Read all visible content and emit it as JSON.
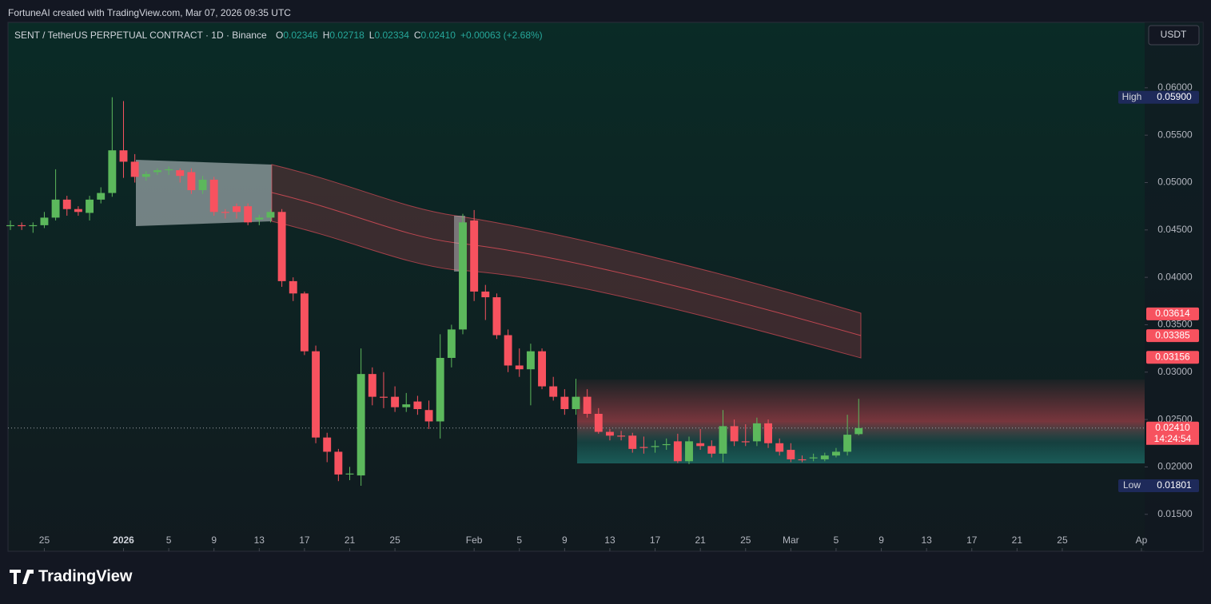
{
  "header": "FortuneAI created with TradingView.com, Mar 07, 2026 09:35 UTC",
  "brand": "TradingView",
  "currency": "USDT",
  "chart_data": {
    "type": "candlestick",
    "legend": {
      "symbol": "SENT / TetherUS PERPETUAL CONTRACT · 1D · Binance",
      "items": [
        {
          "label": "O",
          "value": "0.02346"
        },
        {
          "label": "H",
          "value": "0.02718"
        },
        {
          "label": "L",
          "value": "0.02334"
        },
        {
          "label": "C",
          "value": "0.02410"
        }
      ],
      "change": "+0.00063 (+2.68%)"
    },
    "up_color": "#5cb85c",
    "down_color": "#f7525f",
    "x": [
      "2025-12-22",
      "2025-12-23",
      "2025-12-24",
      "2025-12-25",
      "2025-12-26",
      "2025-12-27",
      "2025-12-28",
      "2025-12-29",
      "2025-12-30",
      "2025-12-31",
      "2026-01-01",
      "2026-01-02",
      "2026-01-03",
      "2026-01-04",
      "2026-01-05",
      "2026-01-06",
      "2026-01-07",
      "2026-01-08",
      "2026-01-09",
      "2026-01-10",
      "2026-01-11",
      "2026-01-12",
      "2026-01-13",
      "2026-01-14",
      "2026-01-15",
      "2026-01-16",
      "2026-01-17",
      "2026-01-18",
      "2026-01-19",
      "2026-01-20",
      "2026-01-21",
      "2026-01-22",
      "2026-01-23",
      "2026-01-24",
      "2026-01-25",
      "2026-01-26",
      "2026-01-27",
      "2026-01-28",
      "2026-01-29",
      "2026-01-30",
      "2026-01-31",
      "2026-02-01",
      "2026-02-02",
      "2026-02-03",
      "2026-02-04",
      "2026-02-05",
      "2026-02-06",
      "2026-02-07",
      "2026-02-08",
      "2026-02-09",
      "2026-02-10",
      "2026-02-11",
      "2026-02-12",
      "2026-02-13",
      "2026-02-14",
      "2026-02-15",
      "2026-02-16",
      "2026-02-17",
      "2026-02-18",
      "2026-02-19",
      "2026-02-20",
      "2026-02-21",
      "2026-02-22",
      "2026-02-23",
      "2026-02-24",
      "2026-02-25",
      "2026-02-26",
      "2026-02-27",
      "2026-02-28",
      "2026-03-01",
      "2026-03-02",
      "2026-03-03",
      "2026-03-04",
      "2026-03-05",
      "2026-03-06",
      "2026-03-07"
    ],
    "open": [
      0.0454,
      0.0455,
      0.0454,
      0.0455,
      0.0463,
      0.0482,
      0.0472,
      0.0468,
      0.0482,
      0.0489,
      0.0534,
      0.0522,
      0.0506,
      0.0511,
      0.0513,
      0.0513,
      0.0511,
      0.0492,
      0.0503,
      0.0469,
      0.0475,
      0.0475,
      0.0461,
      0.0463,
      0.0469,
      0.0396,
      0.0383,
      0.0322,
      0.0231,
      0.0216,
      0.0192,
      0.0191,
      0.0298,
      0.0274,
      0.0274,
      0.0263,
      0.0269,
      0.026,
      0.0248,
      0.0315,
      0.0345,
      0.046,
      0.0385,
      0.0379,
      0.0339,
      0.0307,
      0.0303,
      0.0322,
      0.0285,
      0.0274,
      0.0261,
      0.0274,
      0.0256,
      0.0237,
      0.0233,
      0.0233,
      0.0221,
      0.0221,
      0.0223,
      0.0227,
      0.0206,
      0.0225,
      0.0222,
      0.0214,
      0.0243,
      0.0227,
      0.0227,
      0.0246,
      0.0225,
      0.0218,
      0.0208,
      0.0209,
      0.0208,
      0.0212,
      0.0216,
      0.02346
    ],
    "high": [
      0.046,
      0.0458,
      0.0458,
      0.0469,
      0.0514,
      0.0486,
      0.0475,
      0.0486,
      0.0495,
      0.059,
      0.0586,
      0.053,
      0.0512,
      0.0515,
      0.0517,
      0.0515,
      0.0515,
      0.0507,
      0.0506,
      0.0472,
      0.0478,
      0.0478,
      0.0466,
      0.0472,
      0.0472,
      0.04,
      0.0385,
      0.0328,
      0.0236,
      0.0219,
      0.02,
      0.0325,
      0.0305,
      0.03,
      0.0285,
      0.0278,
      0.0275,
      0.027,
      0.034,
      0.035,
      0.0467,
      0.0471,
      0.0392,
      0.0383,
      0.0345,
      0.0325,
      0.033,
      0.0325,
      0.0295,
      0.0282,
      0.0293,
      0.0282,
      0.0262,
      0.024,
      0.0238,
      0.0236,
      0.0232,
      0.0228,
      0.023,
      0.0235,
      0.0232,
      0.024,
      0.0228,
      0.026,
      0.025,
      0.0245,
      0.0252,
      0.025,
      0.023,
      0.0225,
      0.0212,
      0.0214,
      0.0215,
      0.022,
      0.0255,
      0.02718
    ],
    "low": [
      0.045,
      0.045,
      0.0447,
      0.0452,
      0.046,
      0.0465,
      0.0465,
      0.046,
      0.0478,
      0.0485,
      0.0505,
      0.05,
      0.0502,
      0.0508,
      0.0508,
      0.05,
      0.0488,
      0.0488,
      0.0465,
      0.0462,
      0.0462,
      0.0455,
      0.0455,
      0.0458,
      0.039,
      0.0375,
      0.0318,
      0.0225,
      0.0205,
      0.0185,
      0.0186,
      0.01801,
      0.0265,
      0.0262,
      0.0258,
      0.0258,
      0.0255,
      0.024,
      0.023,
      0.0305,
      0.034,
      0.0375,
      0.0355,
      0.0335,
      0.03,
      0.0295,
      0.0265,
      0.0282,
      0.027,
      0.0255,
      0.0255,
      0.0252,
      0.0235,
      0.0228,
      0.0228,
      0.0215,
      0.0214,
      0.0215,
      0.0218,
      0.0204,
      0.0203,
      0.0218,
      0.021,
      0.0205,
      0.0222,
      0.0222,
      0.0222,
      0.022,
      0.0212,
      0.0205,
      0.0205,
      0.0206,
      0.0206,
      0.021,
      0.0212,
      0.02334
    ],
    "close": [
      0.0455,
      0.0454,
      0.0455,
      0.0463,
      0.0482,
      0.0472,
      0.0469,
      0.0482,
      0.0489,
      0.0534,
      0.0522,
      0.0506,
      0.0509,
      0.0513,
      0.0514,
      0.0507,
      0.0492,
      0.0503,
      0.0469,
      0.0468,
      0.0469,
      0.0458,
      0.0463,
      0.0469,
      0.0396,
      0.0383,
      0.0322,
      0.0231,
      0.0216,
      0.0192,
      0.0193,
      0.0298,
      0.0274,
      0.0273,
      0.0263,
      0.0266,
      0.0261,
      0.0248,
      0.0315,
      0.0345,
      0.0458,
      0.0385,
      0.0379,
      0.0339,
      0.0307,
      0.0303,
      0.0322,
      0.0285,
      0.0274,
      0.0261,
      0.0274,
      0.0256,
      0.0237,
      0.0233,
      0.0232,
      0.0219,
      0.022,
      0.0222,
      0.0224,
      0.0206,
      0.0227,
      0.0222,
      0.0214,
      0.0243,
      0.0227,
      0.0226,
      0.0246,
      0.0225,
      0.0216,
      0.0208,
      0.0207,
      0.021,
      0.0212,
      0.0216,
      0.0234,
      0.0241
    ],
    "xlim": [
      "2025-12-22",
      "2026-04-01"
    ],
    "xticks": [
      {
        "value": "2025-12-25",
        "label": "25"
      },
      {
        "value": "2026-01-01",
        "label": "2026"
      },
      {
        "value": "2026-01-05",
        "label": "5"
      },
      {
        "value": "2026-01-09",
        "label": "9"
      },
      {
        "value": "2026-01-13",
        "label": "13"
      },
      {
        "value": "2026-01-17",
        "label": "17"
      },
      {
        "value": "2026-01-21",
        "label": "21"
      },
      {
        "value": "2026-01-25",
        "label": "25"
      },
      {
        "value": "2026-02-01",
        "label": "Feb"
      },
      {
        "value": "2026-02-05",
        "label": "5"
      },
      {
        "value": "2026-02-09",
        "label": "9"
      },
      {
        "value": "2026-02-13",
        "label": "13"
      },
      {
        "value": "2026-02-17",
        "label": "17"
      },
      {
        "value": "2026-02-21",
        "label": "21"
      },
      {
        "value": "2026-02-25",
        "label": "25"
      },
      {
        "value": "2026-03-01",
        "label": "Mar"
      },
      {
        "value": "2026-03-05",
        "label": "5"
      },
      {
        "value": "2026-03-09",
        "label": "9"
      },
      {
        "value": "2026-03-13",
        "label": "13"
      },
      {
        "value": "2026-03-17",
        "label": "17"
      },
      {
        "value": "2026-03-21",
        "label": "21"
      },
      {
        "value": "2026-03-25",
        "label": "25"
      },
      {
        "value": "2026-04-01",
        "label": "Ap"
      }
    ],
    "ylim": [
      0.0111,
      0.0669
    ],
    "yticks": [
      {
        "value": 0.015,
        "label": "0.01500"
      },
      {
        "value": 0.02,
        "label": "0.02000"
      },
      {
        "value": 0.025,
        "label": "0.02500"
      },
      {
        "value": 0.03,
        "label": "0.03000"
      },
      {
        "value": 0.035,
        "label": "0.03500"
      },
      {
        "value": 0.04,
        "label": "0.04000"
      },
      {
        "value": 0.045,
        "label": "0.04500"
      },
      {
        "value": 0.05,
        "label": "0.05000"
      },
      {
        "value": 0.055,
        "label": "0.05500"
      },
      {
        "value": 0.06,
        "label": "0.06000"
      }
    ],
    "high_marker": {
      "label": "High",
      "price": {
        "value": 0.059,
        "label": "0.05900"
      }
    },
    "low_marker": {
      "label": "Low",
      "price": {
        "value": 0.01801,
        "label": "0.01801"
      }
    },
    "band_labels": [
      {
        "value": 0.03614,
        "label": "0.03614"
      },
      {
        "value": 0.03385,
        "label": "0.03385"
      },
      {
        "value": 0.03156,
        "label": "0.03156"
      }
    ],
    "last_price": {
      "value": 0.0241,
      "label": "0.02410"
    },
    "countdown": "14:24:54"
  }
}
